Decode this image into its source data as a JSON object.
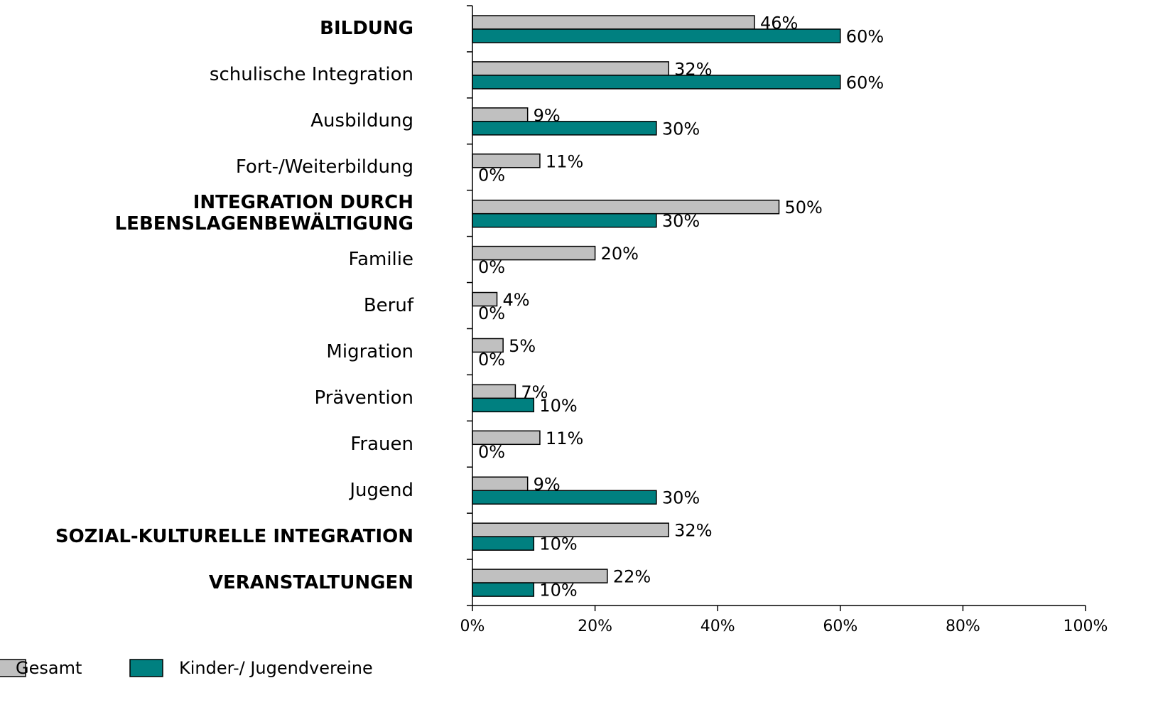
{
  "chart_data": {
    "type": "hbar",
    "categories": [
      "BILDUNG",
      "schulische Integration",
      "Ausbildung",
      "Fort-/Weiterbildung",
      "INTEGRATION DURCH\nLEBENSLAGENBEWÄLTIGUNG",
      "Familie",
      "Beruf",
      "Migration",
      "Prävention",
      "Frauen",
      "Jugend",
      "SOZIAL-KULTURELLE INTEGRATION",
      "VERANSTALTUNGEN"
    ],
    "bold": [
      true,
      false,
      false,
      false,
      true,
      false,
      false,
      false,
      false,
      false,
      false,
      true,
      true
    ],
    "series": [
      {
        "name": "Gesamt",
        "color": "#c0c0c0",
        "values": [
          46,
          32,
          9,
          11,
          50,
          20,
          4,
          5,
          7,
          11,
          9,
          32,
          22
        ],
        "value_labels": [
          "46%",
          "32%",
          "9%",
          "11%",
          "50%",
          "20%",
          "4%",
          "5%",
          "7%",
          "11%",
          "9%",
          "32%",
          "22%"
        ]
      },
      {
        "name": "Kinder-/ Jugendvereine",
        "color": "#008080",
        "values": [
          60,
          60,
          30,
          0,
          30,
          0,
          0,
          0,
          10,
          0,
          30,
          10,
          10
        ],
        "value_labels": [
          "60%",
          "60%",
          "30%",
          "0%",
          "30%",
          "0%",
          "0%",
          "0%",
          "10%",
          "0%",
          "30%",
          "10%",
          "10%"
        ]
      }
    ],
    "xlim": [
      0,
      100
    ],
    "xticks": [
      {
        "value": 0,
        "label": "0%"
      },
      {
        "value": 20,
        "label": "20%"
      },
      {
        "value": 40,
        "label": "40%"
      },
      {
        "value": 60,
        "label": "60%"
      },
      {
        "value": 80,
        "label": "80%"
      },
      {
        "value": 100,
        "label": "100%"
      }
    ],
    "legend": "bottom-left"
  }
}
